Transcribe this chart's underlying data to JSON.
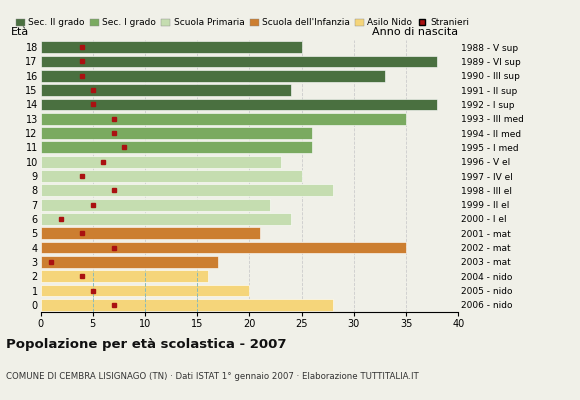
{
  "ages": [
    18,
    17,
    16,
    15,
    14,
    13,
    12,
    11,
    10,
    9,
    8,
    7,
    6,
    5,
    4,
    3,
    2,
    1,
    0
  ],
  "years": [
    "1988 - V sup",
    "1989 - VI sup",
    "1990 - III sup",
    "1991 - II sup",
    "1992 - I sup",
    "1993 - III med",
    "1994 - II med",
    "1995 - I med",
    "1996 - V el",
    "1997 - IV el",
    "1998 - III el",
    "1999 - II el",
    "2000 - I el",
    "2001 - mat",
    "2002 - mat",
    "2003 - mat",
    "2004 - nido",
    "2005 - nido",
    "2006 - nido"
  ],
  "bar_values": [
    25,
    38,
    33,
    24,
    38,
    35,
    26,
    26,
    23,
    25,
    28,
    22,
    24,
    21,
    35,
    17,
    16,
    20,
    28
  ],
  "stranieri": [
    4,
    4,
    4,
    5,
    5,
    7,
    7,
    8,
    6,
    4,
    7,
    5,
    2,
    4,
    7,
    1,
    4,
    5,
    7
  ],
  "bar_colors": [
    "#4a7040",
    "#4a7040",
    "#4a7040",
    "#4a7040",
    "#4a7040",
    "#7aaa60",
    "#7aaa60",
    "#7aaa60",
    "#c5ddb0",
    "#c5ddb0",
    "#c5ddb0",
    "#c5ddb0",
    "#c5ddb0",
    "#cc7e30",
    "#cc7e30",
    "#cc7e30",
    "#f5d57a",
    "#f5d57a",
    "#f5d57a"
  ],
  "legend_labels": [
    "Sec. II grado",
    "Sec. I grado",
    "Scuola Primaria",
    "Scuola dell'Infanzia",
    "Asilo Nido",
    "Stranieri"
  ],
  "legend_colors": [
    "#4a7040",
    "#7aaa60",
    "#c5ddb0",
    "#cc7e30",
    "#f5d57a",
    "#aa1111"
  ],
  "title": "Popolazione per età scolastica - 2007",
  "subtitle": "COMUNE DI CEMBRA LISIGNAGO (TN) · Dati ISTAT 1° gennaio 2007 · Elaborazione TUTTITALIA.IT",
  "eta_label": "Età",
  "anno_label": "Anno di nascita",
  "xlim": [
    0,
    40
  ],
  "xticks": [
    0,
    5,
    10,
    15,
    20,
    25,
    30,
    35,
    40
  ],
  "bg_color": "#f0f0e8",
  "grid_color": "#cccccc",
  "dashed_color": "#88bbbb",
  "stranieri_color": "#aa1111",
  "bar_edge_color": "#ffffff"
}
